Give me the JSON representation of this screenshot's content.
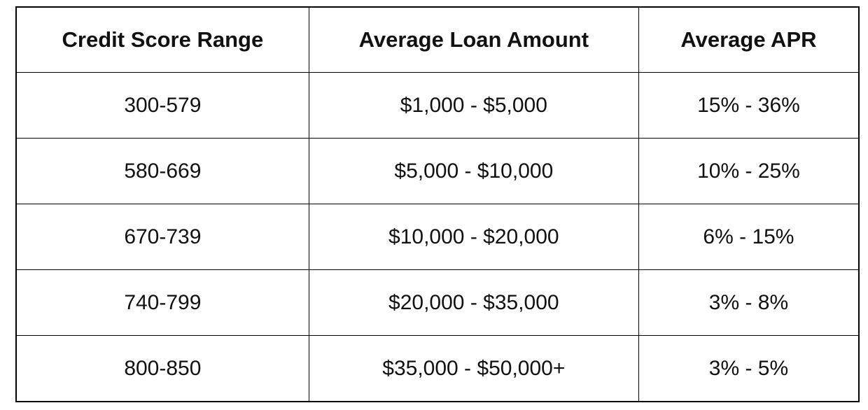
{
  "table": {
    "headers": [
      "Credit Score Range",
      "Average Loan Amount",
      "Average APR"
    ],
    "rows": [
      [
        "300-579",
        "$1,000 - $5,000",
        "15% - 36%"
      ],
      [
        "580-669",
        "$5,000 - $10,000",
        "10% - 25%"
      ],
      [
        "670-739",
        "$10,000 - $20,000",
        "6% - 15%"
      ],
      [
        "740-799",
        "$20,000 - $35,000",
        "3% - 8%"
      ],
      [
        "800-850",
        "$35,000 - $50,000+",
        "3% - 5%"
      ]
    ]
  }
}
